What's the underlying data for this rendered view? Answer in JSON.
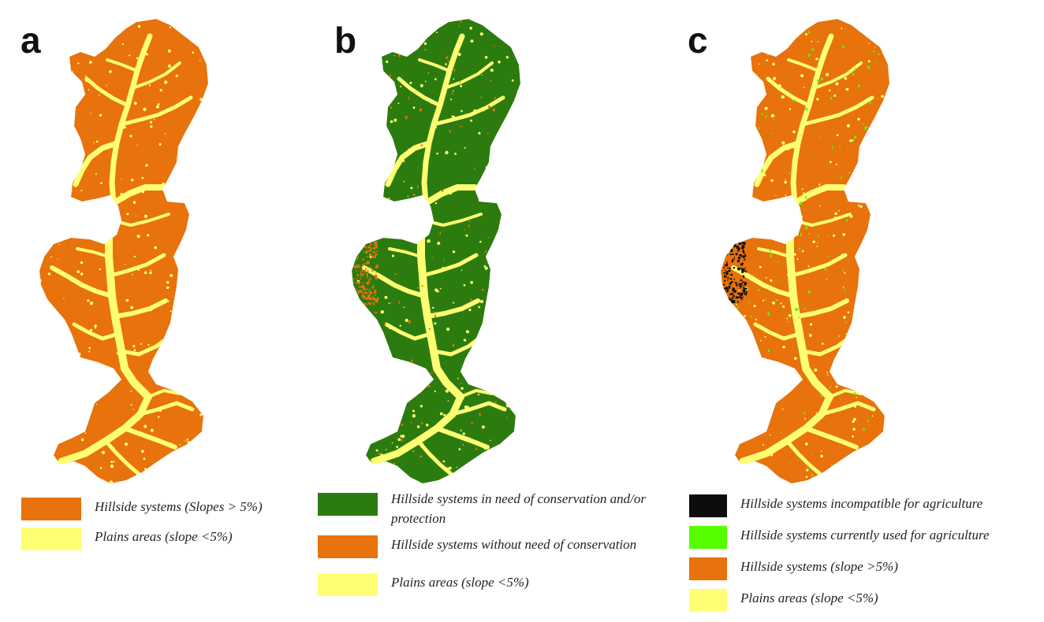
{
  "colors": {
    "orange": "#e8720c",
    "yellow": "#ffff73",
    "dark_green": "#2c7b0f",
    "light_green": "#55ff00",
    "black": "#0d0d0d"
  },
  "panels": [
    {
      "letter": "a",
      "base": "orange",
      "mottle": [],
      "patch": null,
      "legend": [
        {
          "color": "orange",
          "label": "Hillside systems (Slopes > 5%)"
        },
        {
          "color": "yellow",
          "label": "Plains areas (slope <5%)"
        }
      ]
    },
    {
      "letter": "b",
      "base": "dark_green",
      "mottle": [
        "orange"
      ],
      "patch": "orange",
      "legend": [
        {
          "color": "dark_green",
          "label": "Hillside systems in need of conservation and/or protection"
        },
        {
          "color": "orange",
          "label": "Hillside systems without need of conservation"
        },
        {
          "color": "yellow",
          "label": "Plains areas (slope <5%)"
        }
      ]
    },
    {
      "letter": "c",
      "base": "orange",
      "mottle": [
        "light_green"
      ],
      "patch": "black",
      "legend": [
        {
          "color": "black",
          "label": "Hillside systems incompatible for agriculture"
        },
        {
          "color": "light_green",
          "label": "Hillside systems currently used for agriculture"
        },
        {
          "color": "orange",
          "label": "Hillside systems (slope >5%)"
        },
        {
          "color": "yellow",
          "label": "Plains areas (slope <5%)"
        }
      ]
    }
  ]
}
